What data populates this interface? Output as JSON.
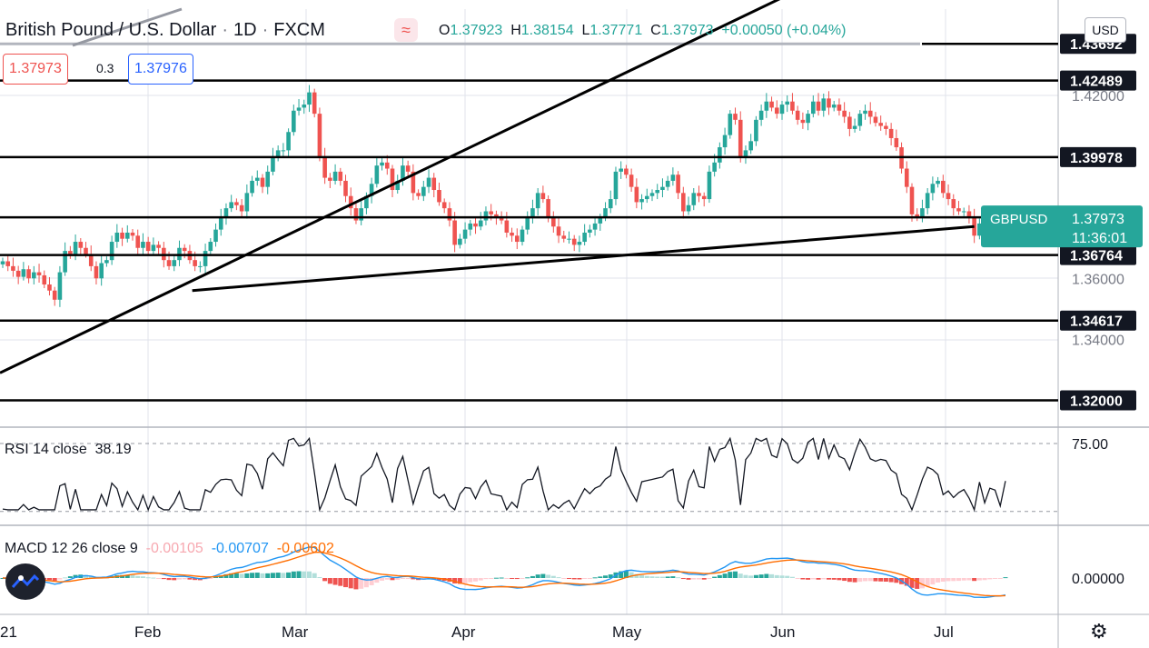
{
  "header": {
    "symbol_name": "British Pound / U.S. Dollar",
    "interval": "1D",
    "exchange": "FXCM",
    "ohlc": {
      "o_label": "O",
      "o": "1.37923",
      "h_label": "H",
      "h": "1.38154",
      "l_label": "L",
      "l": "1.37771",
      "c_label": "C",
      "c": "1.37973",
      "change": "+0.00050 (+0.04%)"
    }
  },
  "trading": {
    "sell": "1.37973",
    "spread": "0.3",
    "buy": "1.37976"
  },
  "currency_button": "USD",
  "rsi_label": {
    "name": "RSI 14 close",
    "value": "38.19"
  },
  "macd_label": {
    "name": "MACD 12 26 close 9",
    "hist": "-0.00105",
    "macd": "-0.00707",
    "signal": "-0.00602"
  },
  "colors": {
    "up": "#26a69a",
    "down": "#ef5350",
    "macd": "#2196f3",
    "signal": "#ff6d00",
    "axis_badge": "#131722",
    "symbol_badge": "#26a69a"
  },
  "chart_data": {
    "type": "candlestick",
    "symbol": "GBPUSD",
    "price_axis": {
      "ticks": [
        "1.42000",
        "1.36000",
        "1.34000"
      ],
      "ylim": [
        1.315,
        1.443
      ]
    },
    "time_axis": {
      "ticks": [
        "21",
        "Feb",
        "Mar",
        "Apr",
        "May",
        "Jun",
        "Jul"
      ]
    },
    "horizontal_levels": [
      {
        "label": "1.43692",
        "value": 1.43692
      },
      {
        "label": "1.42489",
        "value": 1.42489
      },
      {
        "label": "1.39978",
        "value": 1.39978
      },
      {
        "label": "1.38003",
        "value": 1.38003
      },
      {
        "label": "1.36764",
        "value": 1.36764
      },
      {
        "label": "1.34617",
        "value": 1.34617
      },
      {
        "label": "1.32000",
        "value": 1.32
      }
    ],
    "trendlines": [
      {
        "from": [
          0,
          1.329
        ],
        "to": [
          153,
          1.4545
        ]
      },
      {
        "from": [
          37,
          1.356
        ],
        "to": [
          187,
          1.377
        ]
      }
    ],
    "last_price": {
      "symbol": "GBPUSD",
      "price": "1.37973",
      "countdown": "11:36:01"
    },
    "candle_closes": [
      1.3656,
      1.364,
      1.3625,
      1.3605,
      1.363,
      1.36,
      1.362,
      1.361,
      1.358,
      1.356,
      1.353,
      1.362,
      1.369,
      1.368,
      1.372,
      1.37,
      1.368,
      1.364,
      1.36,
      1.365,
      1.366,
      1.372,
      1.375,
      1.373,
      1.375,
      1.374,
      1.37,
      1.372,
      1.369,
      1.371,
      1.37,
      1.366,
      1.364,
      1.366,
      1.37,
      1.369,
      1.366,
      1.364,
      1.364,
      1.369,
      1.372,
      1.376,
      1.38,
      1.383,
      1.385,
      1.384,
      1.382,
      1.388,
      1.392,
      1.393,
      1.39,
      1.395,
      1.4,
      1.402,
      1.402,
      1.408,
      1.415,
      1.416,
      1.417,
      1.421,
      1.414,
      1.4,
      1.393,
      1.392,
      1.395,
      1.392,
      1.387,
      1.383,
      1.379,
      1.383,
      1.387,
      1.391,
      1.397,
      1.398,
      1.396,
      1.389,
      1.392,
      1.397,
      1.395,
      1.388,
      1.387,
      1.39,
      1.393,
      1.389,
      1.385,
      1.383,
      1.379,
      1.371,
      1.373,
      1.376,
      1.378,
      1.377,
      1.379,
      1.382,
      1.381,
      1.38,
      1.379,
      1.375,
      1.374,
      1.372,
      1.376,
      1.38,
      1.383,
      1.388,
      1.386,
      1.38,
      1.377,
      1.374,
      1.373,
      1.373,
      1.371,
      1.372,
      1.375,
      1.376,
      1.378,
      1.38,
      1.383,
      1.386,
      1.395,
      1.396,
      1.394,
      1.39,
      1.385,
      1.386,
      1.387,
      1.388,
      1.389,
      1.39,
      1.392,
      1.394,
      1.388,
      1.382,
      1.384,
      1.388,
      1.387,
      1.386,
      1.395,
      1.398,
      1.403,
      1.407,
      1.414,
      1.412,
      1.4,
      1.402,
      1.405,
      1.412,
      1.415,
      1.418,
      1.416,
      1.414,
      1.417,
      1.418,
      1.415,
      1.412,
      1.411,
      1.414,
      1.418,
      1.415,
      1.419,
      1.416,
      1.417,
      1.415,
      1.413,
      1.409,
      1.41,
      1.414,
      1.415,
      1.413,
      1.411,
      1.41,
      1.409,
      1.406,
      1.403,
      1.396,
      1.39,
      1.381,
      1.38,
      1.383,
      1.388,
      1.391,
      1.392,
      1.388,
      1.386,
      1.383,
      1.382,
      1.382,
      1.38,
      1.374,
      1.378,
      1.376,
      1.378,
      1.379,
      1.376,
      1.3797
    ],
    "rsi": {
      "level": "75.00",
      "last": 38.19
    },
    "macd_axis": {
      "ticks": [
        "0.00000"
      ]
    }
  }
}
